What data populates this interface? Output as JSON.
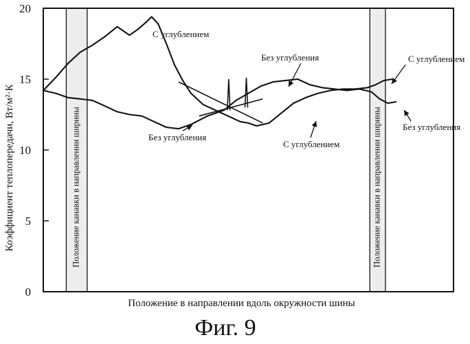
{
  "chart_data": {
    "type": "line",
    "title": "",
    "xlabel": "Положение в направлении вдоль окружности шины",
    "ylabel": "Коэффициент теплопередачи, Вт/м²·К",
    "xlim": [
      0,
      100
    ],
    "ylim": [
      0,
      20
    ],
    "yticks": [
      0,
      5,
      10,
      15,
      20
    ],
    "grid": false,
    "caption": "Фиг. 9",
    "groove_bands": [
      {
        "x_start": 5.6,
        "x_end": 10.7,
        "label": "Положение канавки в направлении ширины"
      },
      {
        "x_start": 79.6,
        "x_end": 83.4,
        "label": "Положение канавки в направлении ширины"
      }
    ],
    "series": [
      {
        "name": "С углублением",
        "x": [
          0,
          3,
          6,
          9,
          12,
          15,
          18,
          21,
          23,
          25,
          26.4,
          28,
          30,
          32,
          34,
          36,
          39,
          42,
          45,
          48,
          50,
          52,
          55,
          58,
          61,
          64,
          67,
          70,
          73,
          76,
          79,
          81,
          83,
          85
        ],
        "y": [
          14.2,
          15.1,
          16.1,
          16.9,
          17.4,
          18.0,
          18.7,
          18.1,
          18.5,
          19.0,
          19.4,
          18.9,
          17.5,
          16.0,
          14.9,
          14.0,
          13.2,
          12.8,
          12.4,
          12.0,
          11.9,
          11.7,
          11.9,
          12.6,
          13.3,
          13.7,
          14.0,
          14.2,
          14.3,
          14.3,
          14.4,
          14.6,
          14.9,
          15.0
        ],
        "label_position": "upper-left of center"
      },
      {
        "name": "Без углубления",
        "x": [
          0,
          3,
          6,
          9,
          12,
          15,
          18,
          21,
          24,
          27,
          30,
          33,
          36,
          40,
          44,
          47,
          50,
          53,
          56,
          59,
          62,
          65,
          68,
          71,
          74,
          77,
          80,
          82,
          84,
          86
        ],
        "y": [
          14.2,
          14.0,
          13.7,
          13.6,
          13.5,
          13.1,
          12.7,
          12.5,
          12.4,
          12.0,
          11.6,
          11.5,
          11.8,
          12.4,
          12.8,
          13.5,
          14.0,
          14.5,
          14.8,
          14.9,
          15.0,
          14.6,
          14.4,
          14.3,
          14.2,
          14.3,
          14.1,
          13.6,
          13.3,
          13.4
        ],
        "label_position": "upper-right of center"
      }
    ],
    "spikes": [
      {
        "x": 45.2,
        "y_from": 12.8,
        "y_to": 15.0
      },
      {
        "x": 49.5,
        "y_from": 13.0,
        "y_to": 15.1
      }
    ],
    "annotations": [
      {
        "text": "С углублением",
        "series": "С углублением",
        "at_x": 27,
        "near": "upper curve peak"
      },
      {
        "text": "Без углубления",
        "series": "Без углубления",
        "at_x": 50,
        "near": "rising curve"
      },
      {
        "text": "Без углубления",
        "series": "Без углубления",
        "at_x": 30,
        "near": "lower curve"
      },
      {
        "text": "С углублением",
        "series": "С углублением",
        "at_x": 60,
        "near": "lower curve"
      },
      {
        "text": "С углублением",
        "series": "С углублением",
        "at_x": 84,
        "near": "right end"
      },
      {
        "text": "Без углубления",
        "series": "Без углубления",
        "at_x": 86,
        "near": "right end"
      }
    ]
  }
}
